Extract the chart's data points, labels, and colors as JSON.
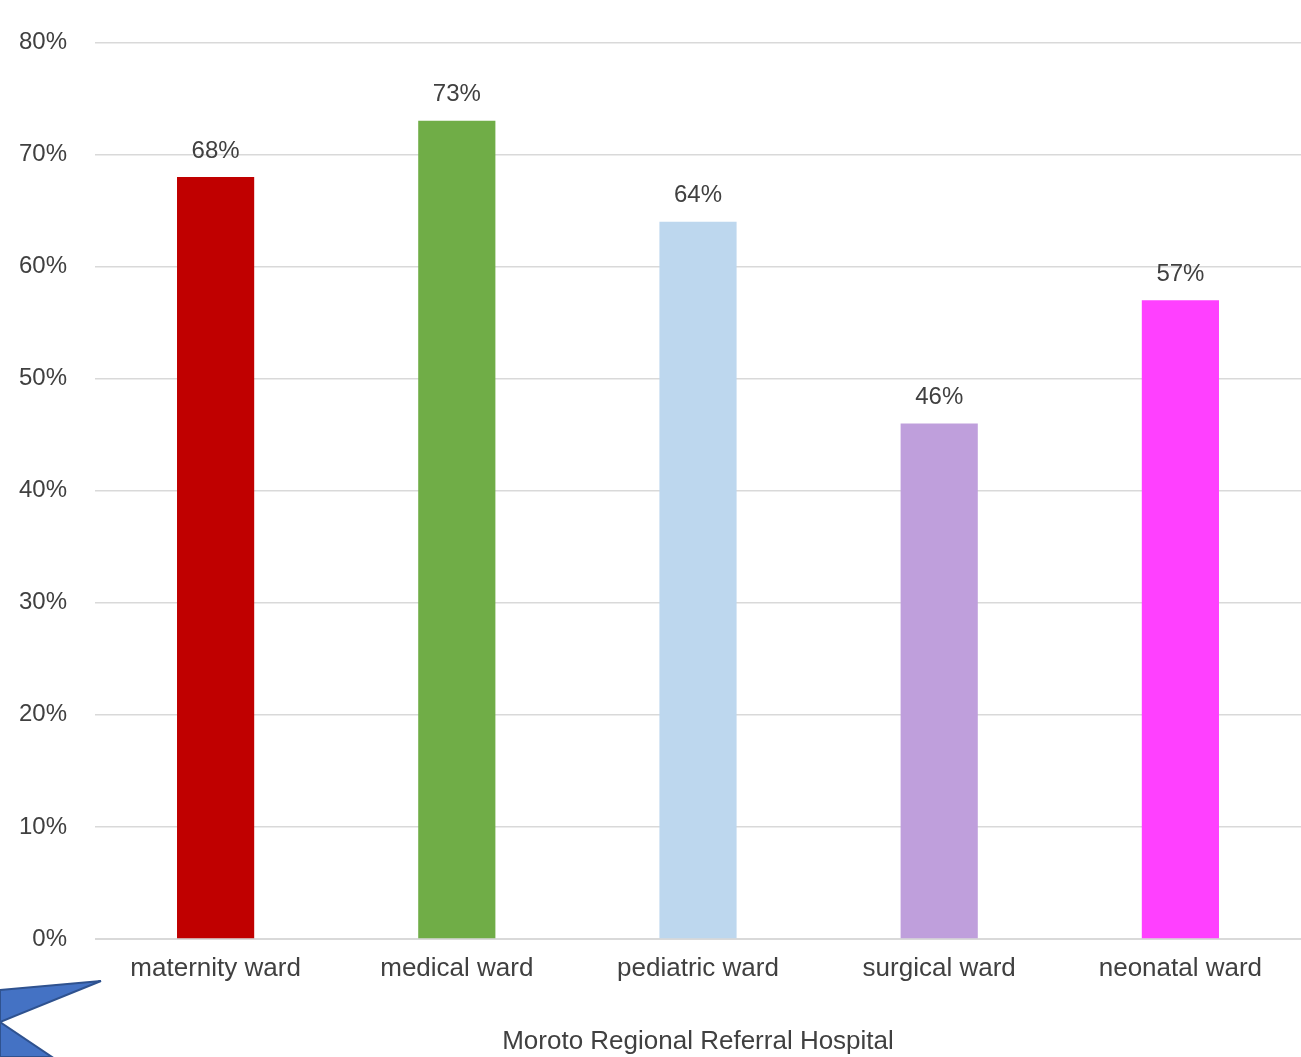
{
  "chart_data": {
    "type": "bar",
    "xlabel": "Moroto Regional Referral Hospital",
    "categories": [
      "maternity ward",
      "medical ward",
      "pediatric ward",
      "surgical ward",
      "neonatal ward"
    ],
    "values": [
      68,
      73,
      64,
      46,
      57
    ],
    "colors": [
      "#c00000",
      "#70ad47",
      "#bdd7ee",
      "#bf9fdc",
      "#ff40ff"
    ],
    "value_labels": [
      "68%",
      "73%",
      "64%",
      "46%",
      "57%"
    ],
    "ylim": [
      0,
      80
    ],
    "yticks": [
      {
        "value": 0,
        "label": "0%"
      },
      {
        "value": 10,
        "label": "10%"
      },
      {
        "value": 20,
        "label": "20%"
      },
      {
        "value": 30,
        "label": "30%"
      },
      {
        "value": 40,
        "label": "40%"
      },
      {
        "value": 50,
        "label": "50%"
      },
      {
        "value": 60,
        "label": "60%"
      },
      {
        "value": 70,
        "label": "70%"
      },
      {
        "value": 80,
        "label": "80%"
      }
    ],
    "grid": "y",
    "legend": false
  }
}
